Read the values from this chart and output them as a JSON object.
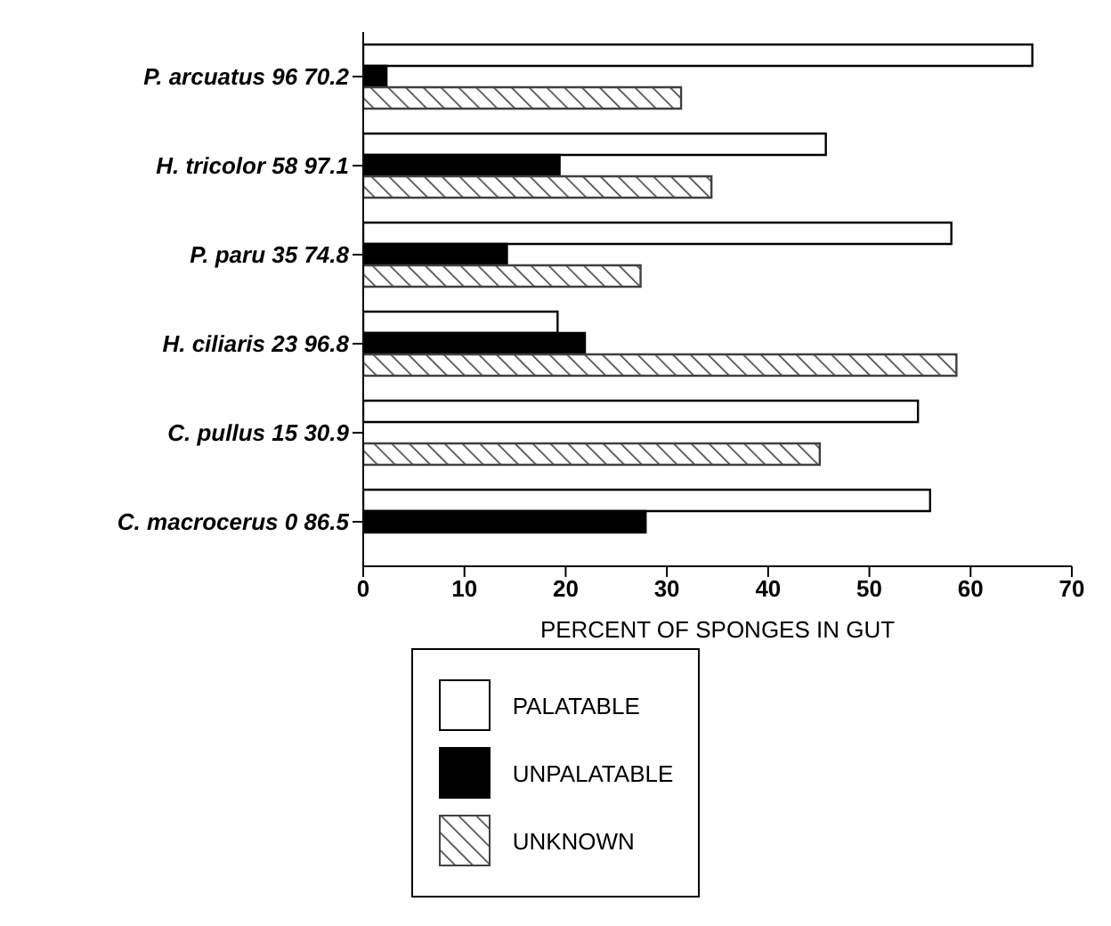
{
  "chart_data": {
    "type": "bar",
    "orientation": "horizontal",
    "xlabel": "PERCENT OF SPONGES IN GUT",
    "categories": [
      "P. arcuatus  96  70.2",
      "H. tricolor  58  97.1",
      "P. paru  35  74.8",
      "H. ciliaris  23  96.8",
      "C. pullus  15  30.9",
      "C. macrocerus  0  86.5"
    ],
    "series": [
      {
        "name": "PALATABLE",
        "color": "#ffffff",
        "values": [
          66.1,
          45.7,
          58.1,
          19.2,
          54.8,
          56
        ]
      },
      {
        "name": "UNPALATABLE",
        "color": "#000000",
        "values": [
          2.3,
          19.4,
          14.2,
          21.9,
          0,
          27.9
        ]
      },
      {
        "name": "UNKNOWN",
        "color": "#404040",
        "values": [
          31.4,
          34.4,
          27.4,
          58.6,
          45.1,
          0
        ]
      }
    ],
    "xlim": [
      0,
      70
    ],
    "xticks": [
      0,
      10,
      20,
      30,
      40,
      50,
      60,
      70
    ],
    "grid": false,
    "legend": "bottom"
  }
}
